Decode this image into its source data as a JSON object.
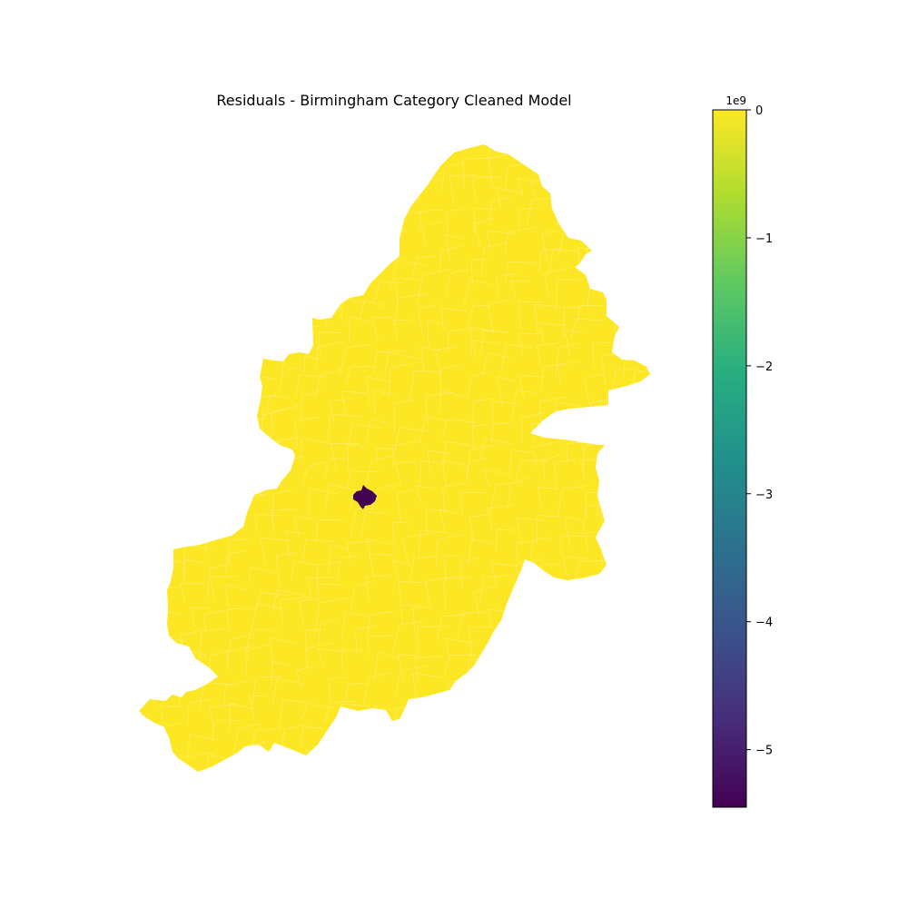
{
  "title": "Residuals - Birmingham Category Cleaned Model",
  "colorbar": {
    "multiplier": "1e9",
    "colormap": "viridis",
    "range": [
      -5.45,
      0
    ],
    "ticks": [
      {
        "value": 0,
        "label": "0"
      },
      {
        "value": -1,
        "label": "−1"
      },
      {
        "value": -2,
        "label": "−2"
      },
      {
        "value": -3,
        "label": "−3"
      },
      {
        "value": -4,
        "label": "−4"
      },
      {
        "value": -5,
        "label": "−5"
      }
    ]
  },
  "map": {
    "region_fill_color": "#fde725",
    "boundary_color": "#ffffff",
    "outlier_fill_color": "#440154",
    "region_value": 0,
    "outlier_value": -5.45
  }
}
